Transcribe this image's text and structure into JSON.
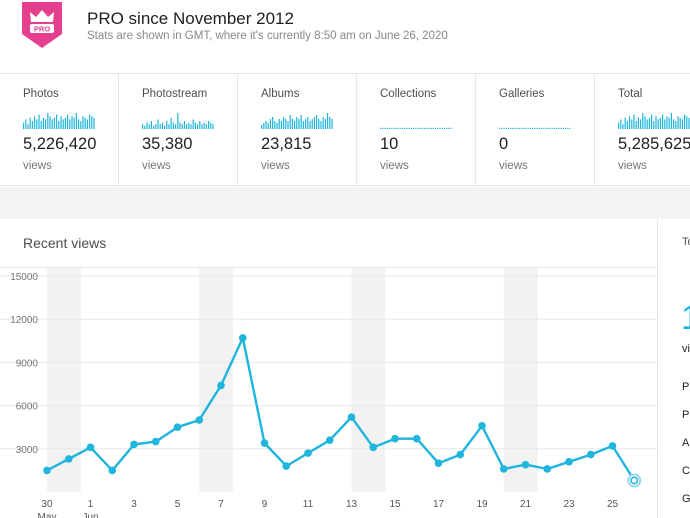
{
  "header": {
    "badge_text": "PRO",
    "title": "PRO since November 2012",
    "subtitle": "Stats are shown in GMT, where it's currently 8:50 am on June 26, 2020"
  },
  "stats": [
    {
      "label": "Photos",
      "value": "5,226,420",
      "unit": "views"
    },
    {
      "label": "Photostream",
      "value": "35,380",
      "unit": "views"
    },
    {
      "label": "Albums",
      "value": "23,815",
      "unit": "views"
    },
    {
      "label": "Collections",
      "value": "10",
      "unit": "views"
    },
    {
      "label": "Galleries",
      "value": "0",
      "unit": "views"
    },
    {
      "label": "Total",
      "value": "5,285,625",
      "unit": "views"
    }
  ],
  "colors": {
    "accent": "#1fb5dd",
    "badge": "#e4408f",
    "weekend_band": "#f2f2f2",
    "gridline": "#e8e8e8"
  },
  "recent_views": {
    "title": "Recent views"
  },
  "right_panel": {
    "tab": "To",
    "big": "1",
    "unit": "vi",
    "items": [
      "P",
      "P",
      "A",
      "C",
      "G"
    ]
  },
  "chart_data": {
    "type": "line",
    "title": "Recent views",
    "xlabel": "",
    "ylabel": "",
    "ylim": [
      0,
      15000
    ],
    "yticks": [
      3000,
      6000,
      9000,
      12000,
      15000
    ],
    "grid": true,
    "x": [
      "May 30",
      "May 31",
      "Jun 1",
      "Jun 2",
      "Jun 3",
      "Jun 4",
      "Jun 5",
      "Jun 6",
      "Jun 7",
      "Jun 8",
      "Jun 9",
      "Jun 10",
      "Jun 11",
      "Jun 12",
      "Jun 13",
      "Jun 14",
      "Jun 15",
      "Jun 16",
      "Jun 17",
      "Jun 18",
      "Jun 19",
      "Jun 20",
      "Jun 21",
      "Jun 22",
      "Jun 23",
      "Jun 24",
      "Jun 25",
      "Jun 26"
    ],
    "xtick_labels": [
      {
        "day": "30",
        "month": "May"
      },
      {
        "day": "1",
        "month": "Jun"
      },
      {
        "day": "3",
        "month": ""
      },
      {
        "day": "5",
        "month": ""
      },
      {
        "day": "7",
        "month": ""
      },
      {
        "day": "9",
        "month": ""
      },
      {
        "day": "11",
        "month": ""
      },
      {
        "day": "13",
        "month": ""
      },
      {
        "day": "15",
        "month": ""
      },
      {
        "day": "17",
        "month": ""
      },
      {
        "day": "19",
        "month": ""
      },
      {
        "day": "21",
        "month": ""
      },
      {
        "day": "23",
        "month": ""
      },
      {
        "day": "25",
        "month": ""
      }
    ],
    "series": [
      {
        "values": [
          1500,
          2300,
          3100,
          1500,
          3300,
          3500,
          4500,
          5000,
          7400,
          10700,
          3400,
          1800,
          2700,
          3600,
          5200,
          3100,
          3700,
          3700,
          2000,
          2600,
          4600,
          1600,
          1900,
          1600,
          2100,
          2600,
          3200,
          800
        ]
      }
    ],
    "last_point_partial": true,
    "weekend_bands": [
      [
        "May 30",
        "May 31"
      ],
      [
        "Jun 6",
        "Jun 7"
      ],
      [
        "Jun 13",
        "Jun 14"
      ],
      [
        "Jun 20",
        "Jun 21"
      ]
    ]
  }
}
